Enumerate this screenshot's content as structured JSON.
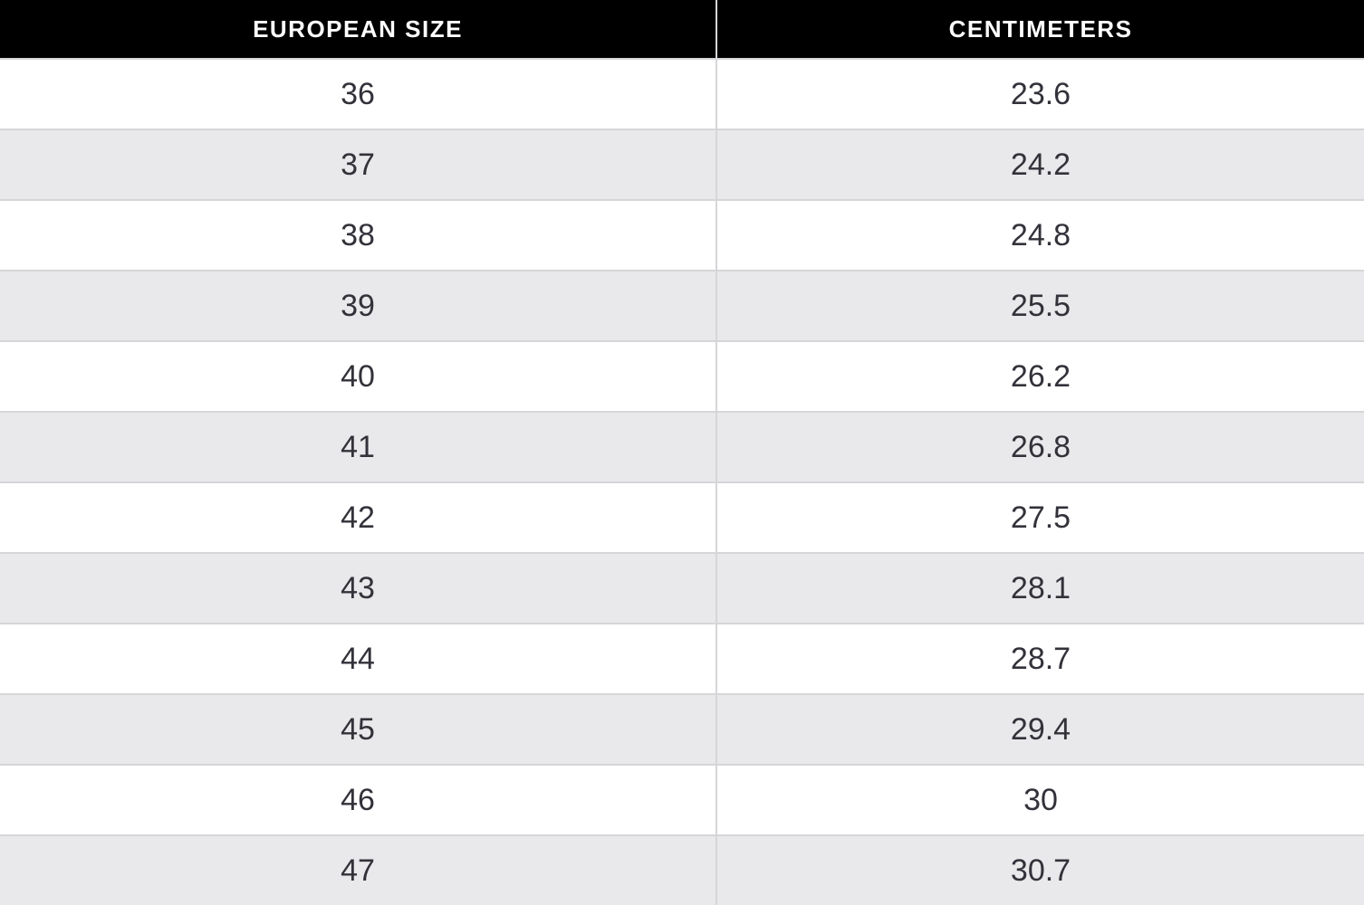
{
  "table": {
    "columns": [
      {
        "key": "eu",
        "label": "EUROPEAN SIZE"
      },
      {
        "key": "cm",
        "label": "CENTIMETERS"
      }
    ],
    "rows": [
      {
        "eu": "36",
        "cm": "23.6"
      },
      {
        "eu": "37",
        "cm": "24.2"
      },
      {
        "eu": "38",
        "cm": "24.8"
      },
      {
        "eu": "39",
        "cm": "25.5"
      },
      {
        "eu": "40",
        "cm": "26.2"
      },
      {
        "eu": "41",
        "cm": "26.8"
      },
      {
        "eu": "42",
        "cm": "27.5"
      },
      {
        "eu": "43",
        "cm": "28.1"
      },
      {
        "eu": "44",
        "cm": "28.7"
      },
      {
        "eu": "45",
        "cm": "29.4"
      },
      {
        "eu": "46",
        "cm": "30"
      },
      {
        "eu": "47",
        "cm": "30.7"
      }
    ]
  },
  "colors": {
    "header_bg": "#000000",
    "header_text": "#ffffff",
    "row_bg": "#ffffff",
    "row_alt_bg": "#e9e9eb",
    "border": "#d6d6d9",
    "cell_text": "#32323a"
  },
  "chart_data": {
    "type": "table",
    "columns": [
      "EUROPEAN SIZE",
      "CENTIMETERS"
    ],
    "rows": [
      [
        36,
        23.6
      ],
      [
        37,
        24.2
      ],
      [
        38,
        24.8
      ],
      [
        39,
        25.5
      ],
      [
        40,
        26.2
      ],
      [
        41,
        26.8
      ],
      [
        42,
        27.5
      ],
      [
        43,
        28.1
      ],
      [
        44,
        28.7
      ],
      [
        45,
        29.4
      ],
      [
        46,
        30
      ],
      [
        47,
        30.7
      ]
    ]
  }
}
